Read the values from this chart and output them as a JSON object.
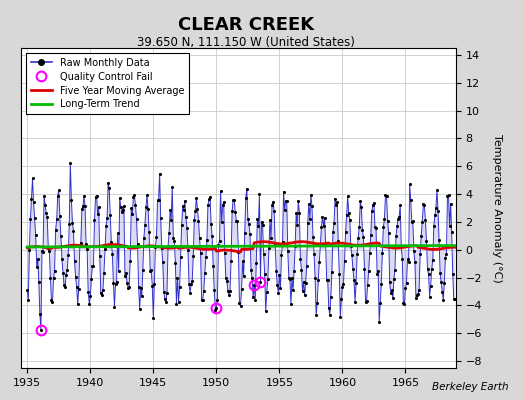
{
  "title": "CLEAR CREEK",
  "subtitle": "39.650 N, 111.150 W (United States)",
  "ylabel": "Temperature Anomaly (°C)",
  "credit": "Berkeley Earth",
  "xlim": [
    1934.5,
    1969.0
  ],
  "ylim": [
    -8.5,
    14.5
  ],
  "yticks": [
    -8,
    -6,
    -4,
    -2,
    0,
    2,
    4,
    6,
    8,
    10,
    12,
    14
  ],
  "xticks": [
    1935,
    1940,
    1945,
    1950,
    1955,
    1960,
    1965
  ],
  "fig_color": "#d8d8d8",
  "plot_bg_color": "#ffffff",
  "line_color": "#3333cc",
  "fill_color": "#9999dd",
  "dot_color": "#000000",
  "ma_color": "#dd0000",
  "trend_color": "#00bb00",
  "qc_color": "#ff00ff",
  "start_year": 1935,
  "end_year": 1968,
  "seed": 17
}
